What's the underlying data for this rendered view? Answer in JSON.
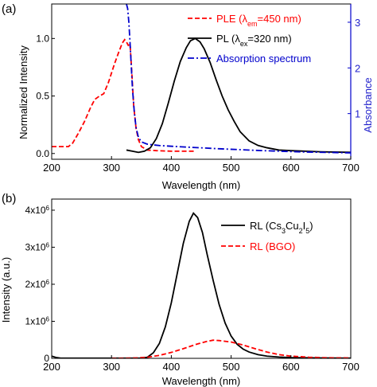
{
  "chart_data": [
    {
      "panel_label": "(a)",
      "type": "line",
      "xlabel": "Wavelength (nm)",
      "ylabel": "Normalized Intensity",
      "ylabel_right": "Absorbance",
      "xlim": [
        200,
        700
      ],
      "ylim": [
        -0.05,
        1.3
      ],
      "ylim_right": [
        0,
        3.4
      ],
      "x_ticks": [
        200,
        300,
        400,
        500,
        600,
        700
      ],
      "y_ticks": [
        0.0,
        0.5,
        1.0
      ],
      "y_tick_labels": [
        "0.0",
        "0.5",
        "1.0"
      ],
      "y_right_ticks": [
        1,
        2,
        3
      ],
      "grid": false,
      "legend_position": "top-right",
      "series": [
        {
          "legend_parts": [
            "PLE (λ",
            "em",
            "=450 nm)"
          ],
          "axis": "left",
          "style": "dashed",
          "color": "#ff0000",
          "points": [
            [
              200,
              0.06
            ],
            [
              215,
              0.06
            ],
            [
              228,
              0.06
            ],
            [
              235,
              0.09
            ],
            [
              245,
              0.18
            ],
            [
              255,
              0.28
            ],
            [
              265,
              0.4
            ],
            [
              272,
              0.47
            ],
            [
              280,
              0.5
            ],
            [
              287,
              0.52
            ],
            [
              295,
              0.62
            ],
            [
              305,
              0.78
            ],
            [
              312,
              0.88
            ],
            [
              318,
              0.96
            ],
            [
              322,
              0.99
            ],
            [
              325,
              0.97
            ],
            [
              328,
              0.94
            ],
            [
              331,
              0.95
            ],
            [
              334,
              0.7
            ],
            [
              337,
              0.42
            ],
            [
              341,
              0.22
            ],
            [
              345,
              0.12
            ],
            [
              350,
              0.06
            ],
            [
              360,
              0.03
            ],
            [
              375,
              0.025
            ],
            [
              400,
              0.02
            ],
            [
              440,
              0.02
            ]
          ]
        },
        {
          "legend_parts": [
            "PL (λ",
            "ex",
            "=320 nm)"
          ],
          "axis": "left",
          "style": "solid",
          "color": "#000000",
          "points": [
            [
              325,
              0.03
            ],
            [
              335,
              0.02
            ],
            [
              345,
              0.01
            ],
            [
              355,
              0.02
            ],
            [
              365,
              0.05
            ],
            [
              375,
              0.13
            ],
            [
              385,
              0.26
            ],
            [
              395,
              0.44
            ],
            [
              405,
              0.63
            ],
            [
              415,
              0.8
            ],
            [
              425,
              0.92
            ],
            [
              432,
              0.98
            ],
            [
              440,
              1.0
            ],
            [
              448,
              0.97
            ],
            [
              455,
              0.91
            ],
            [
              465,
              0.79
            ],
            [
              475,
              0.64
            ],
            [
              485,
              0.5
            ],
            [
              495,
              0.38
            ],
            [
              505,
              0.28
            ],
            [
              515,
              0.19
            ],
            [
              530,
              0.11
            ],
            [
              545,
              0.07
            ],
            [
              560,
              0.05
            ],
            [
              580,
              0.03
            ],
            [
              600,
              0.025
            ],
            [
              650,
              0.015
            ],
            [
              700,
              0.01
            ]
          ]
        },
        {
          "legend_parts": [
            "Absorption spectrum"
          ],
          "axis": "right",
          "style": "dashdot",
          "color": "#0000cc",
          "points": [
            [
              325,
              3.4
            ],
            [
              327,
              3.3
            ],
            [
              329,
              3.0
            ],
            [
              331,
              2.55
            ],
            [
              333,
              2.05
            ],
            [
              335,
              1.55
            ],
            [
              338,
              1.05
            ],
            [
              341,
              0.7
            ],
            [
              345,
              0.48
            ],
            [
              350,
              0.38
            ],
            [
              360,
              0.33
            ],
            [
              380,
              0.3
            ],
            [
              420,
              0.27
            ],
            [
              480,
              0.23
            ],
            [
              550,
              0.19
            ],
            [
              620,
              0.16
            ],
            [
              700,
              0.14
            ]
          ]
        }
      ]
    },
    {
      "panel_label": "(b)",
      "type": "line",
      "xlabel": "Wavelength (nm)",
      "ylabel": "Intensity (a.u.)",
      "xlim": [
        200,
        700
      ],
      "ylim": [
        0,
        4300000
      ],
      "x_ticks": [
        200,
        300,
        400,
        500,
        600,
        700
      ],
      "y_ticks": [
        0,
        1000000,
        2000000,
        3000000,
        4000000
      ],
      "y_tick_labels": [
        {
          "mantissa": "0",
          "exp": ""
        },
        {
          "mantissa": "1x10",
          "exp": "6"
        },
        {
          "mantissa": "2x10",
          "exp": "6"
        },
        {
          "mantissa": "3x10",
          "exp": "6"
        },
        {
          "mantissa": "4x10",
          "exp": "6"
        }
      ],
      "grid": false,
      "legend_position": "top-right",
      "series": [
        {
          "legend_parts": [
            "RL (Cs",
            "3",
            "Cu",
            "2",
            "I",
            "5",
            ")"
          ],
          "style": "solid",
          "color": "#000000",
          "points": [
            [
              200,
              60000
            ],
            [
              208,
              20000
            ],
            [
              215,
              5000
            ],
            [
              350,
              5000
            ],
            [
              360,
              30000
            ],
            [
              370,
              150000
            ],
            [
              380,
              400000
            ],
            [
              390,
              850000
            ],
            [
              400,
              1500000
            ],
            [
              410,
              2300000
            ],
            [
              420,
              3100000
            ],
            [
              430,
              3700000
            ],
            [
              437,
              3920000
            ],
            [
              444,
              3800000
            ],
            [
              452,
              3400000
            ],
            [
              460,
              2800000
            ],
            [
              470,
              2100000
            ],
            [
              480,
              1450000
            ],
            [
              490,
              950000
            ],
            [
              500,
              600000
            ],
            [
              510,
              380000
            ],
            [
              520,
              250000
            ],
            [
              530,
              170000
            ],
            [
              545,
              100000
            ],
            [
              560,
              60000
            ],
            [
              580,
              35000
            ],
            [
              600,
              20000
            ],
            [
              650,
              10000
            ],
            [
              700,
              5000
            ]
          ]
        },
        {
          "legend_parts": [
            "RL (BGO)"
          ],
          "style": "dashed",
          "color": "#ff0000",
          "points": [
            [
              300,
              0
            ],
            [
              340,
              10000
            ],
            [
              360,
              30000
            ],
            [
              380,
              80000
            ],
            [
              400,
              160000
            ],
            [
              420,
              260000
            ],
            [
              440,
              370000
            ],
            [
              460,
              460000
            ],
            [
              470,
              490000
            ],
            [
              480,
              480000
            ],
            [
              500,
              440000
            ],
            [
              520,
              360000
            ],
            [
              540,
              260000
            ],
            [
              560,
              170000
            ],
            [
              580,
              100000
            ],
            [
              600,
              60000
            ],
            [
              630,
              30000
            ],
            [
              660,
              15000
            ],
            [
              700,
              10000
            ]
          ]
        }
      ]
    }
  ]
}
